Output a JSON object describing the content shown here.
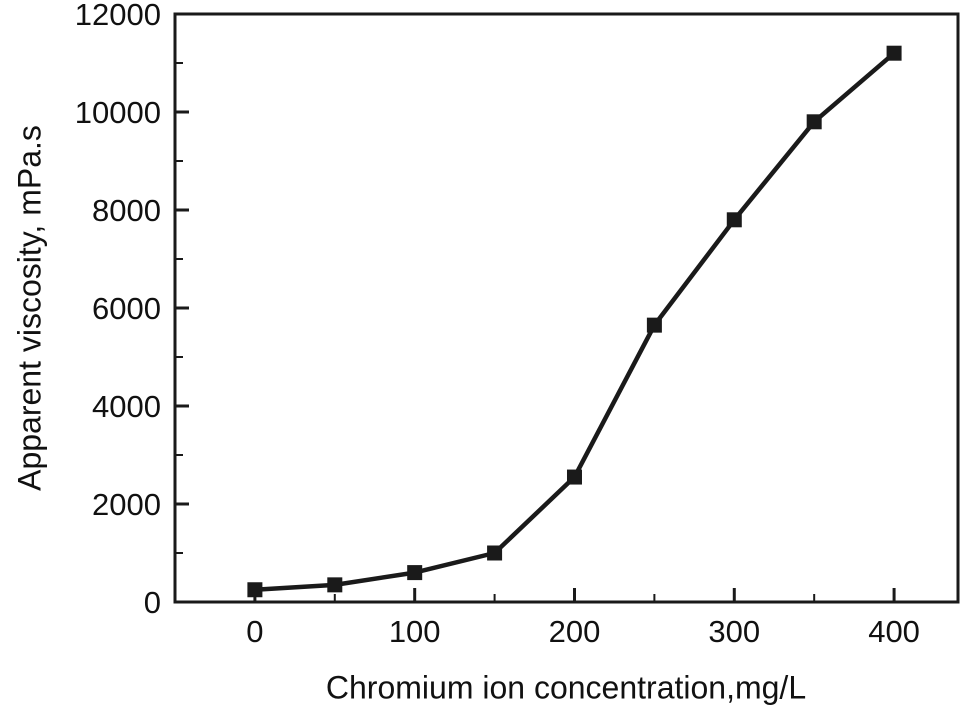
{
  "chart_data": {
    "type": "line",
    "title": "",
    "xlabel": "Chromium ion concentration,mg/L",
    "ylabel": "Apparent viscosity,  mPa.s",
    "x": [
      0,
      50,
      100,
      150,
      200,
      250,
      300,
      350,
      400
    ],
    "y": [
      250,
      350,
      600,
      1000,
      2550,
      5650,
      7800,
      9800,
      11200
    ],
    "xlim": [
      -50,
      440
    ],
    "ylim": [
      0,
      12000
    ],
    "x_major_ticks": [
      0,
      100,
      200,
      300,
      400
    ],
    "x_minor_ticks": [
      50,
      150,
      250,
      350
    ],
    "y_major_ticks": [
      0,
      2000,
      4000,
      6000,
      8000,
      10000,
      12000
    ],
    "y_minor_ticks": [
      1000,
      3000,
      5000,
      7000,
      9000,
      11000
    ],
    "line_color": "#1a1a1a",
    "marker": "square",
    "marker_color": "#1a1a1a",
    "frame_color": "#1a1a1a",
    "grid": false,
    "legend": "none"
  }
}
